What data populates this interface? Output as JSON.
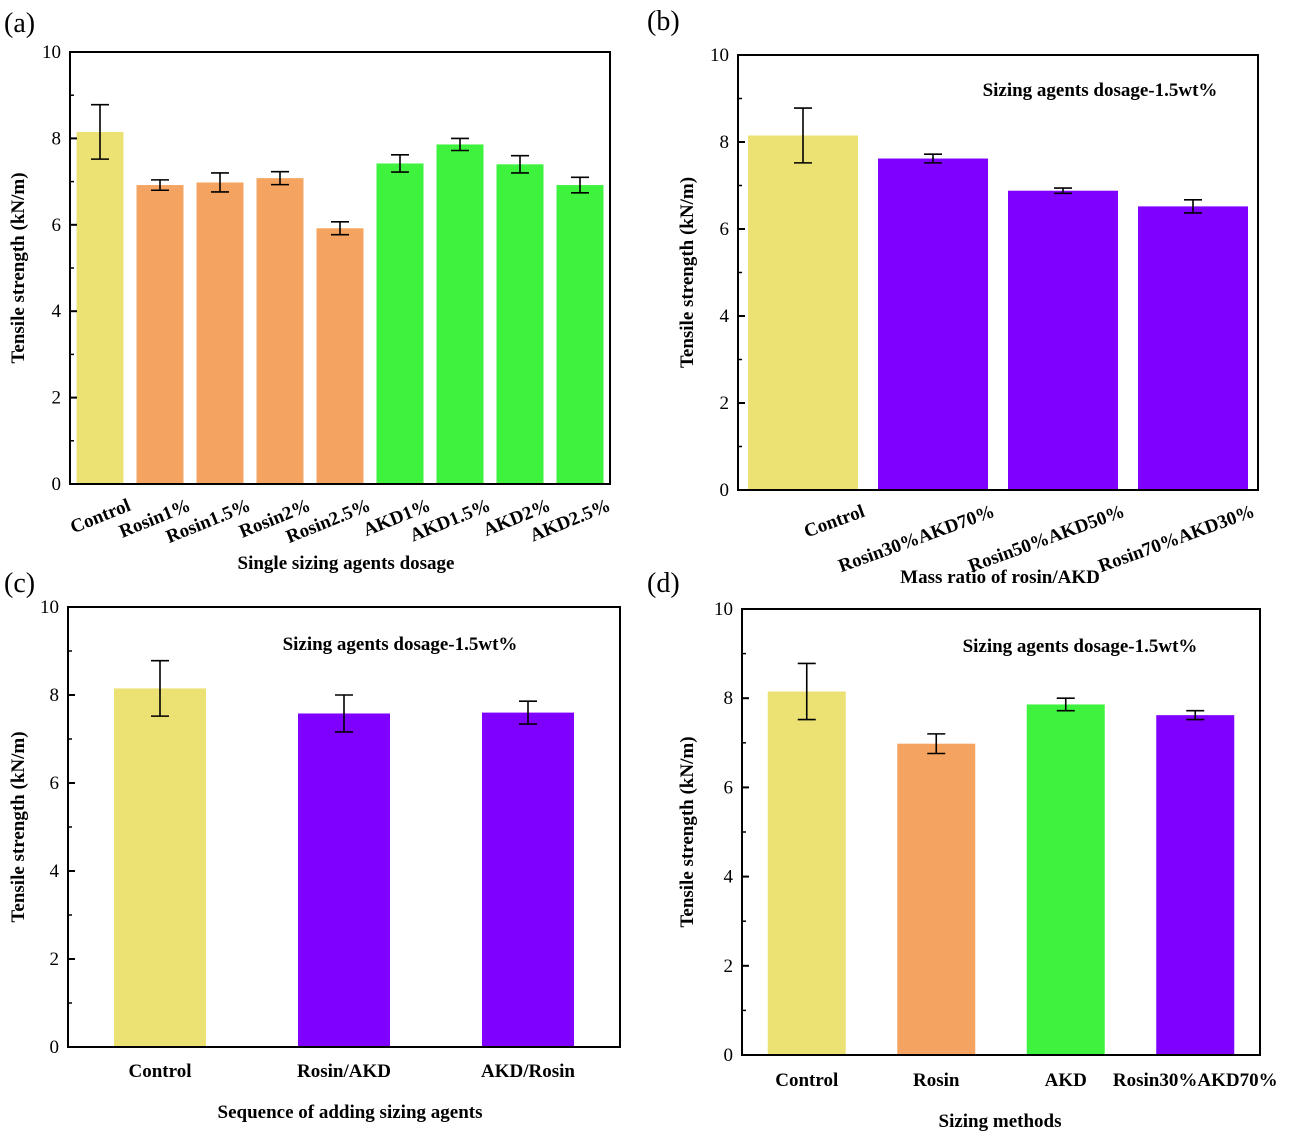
{
  "chart_data": [
    {
      "panel": "(a)",
      "type": "bar",
      "title": "",
      "annotation": "",
      "xlabel": "Single sizing agents dosage",
      "ylabel": "Tensile strength (kN/m)",
      "ylim": [
        0,
        10
      ],
      "yticks": [
        0,
        2,
        4,
        6,
        8,
        10
      ],
      "categories": [
        "Control",
        "Rosin1%",
        "Rosin1.5%",
        "Rosin2%",
        "Rosin2.5%",
        "AKD1%",
        "AKD1.5%",
        "AKD2%",
        "AKD2.5%"
      ],
      "values": [
        8.15,
        6.92,
        6.98,
        7.08,
        5.92,
        7.42,
        7.86,
        7.4,
        6.92
      ],
      "errors": [
        0.63,
        0.12,
        0.22,
        0.15,
        0.15,
        0.2,
        0.14,
        0.2,
        0.18
      ],
      "colors": [
        "#ece274",
        "#f4a460",
        "#f4a460",
        "#f4a460",
        "#f4a460",
        "#3ef23e",
        "#3ef23e",
        "#3ef23e",
        "#3ef23e"
      ],
      "rotate_labels": true
    },
    {
      "panel": "(b)",
      "type": "bar",
      "title": "",
      "annotation": "Sizing agents dosage-1.5wt%",
      "xlabel": "Mass ratio of rosin/AKD",
      "ylabel": "Tensile strength (kN/m)",
      "ylim": [
        0,
        10
      ],
      "yticks": [
        0,
        2,
        4,
        6,
        8,
        10
      ],
      "categories": [
        "Control",
        "Rosin30%AKD70%",
        "Rosin50%AKD50%",
        "Rosin70%AKD30%"
      ],
      "values": [
        8.15,
        7.62,
        6.88,
        6.52
      ],
      "errors": [
        0.63,
        0.1,
        0.06,
        0.15
      ],
      "colors": [
        "#ece274",
        "#8000ff",
        "#8000ff",
        "#8000ff"
      ],
      "rotate_labels": true
    },
    {
      "panel": "(c)",
      "type": "bar",
      "title": "",
      "annotation": "Sizing agents dosage-1.5wt%",
      "xlabel": "Sequence of adding sizing agents",
      "ylabel": "Tensile strength (kN/m)",
      "ylim": [
        0,
        10
      ],
      "yticks": [
        0,
        2,
        4,
        6,
        8,
        10
      ],
      "categories": [
        "Control",
        "Rosin/AKD",
        "AKD/Rosin"
      ],
      "values": [
        8.15,
        7.58,
        7.6
      ],
      "errors": [
        0.63,
        0.42,
        0.26
      ],
      "colors": [
        "#ece274",
        "#8000ff",
        "#8000ff"
      ],
      "rotate_labels": false
    },
    {
      "panel": "(d)",
      "type": "bar",
      "title": "",
      "annotation": "Sizing agents dosage-1.5wt%",
      "xlabel": "Sizing methods",
      "ylabel": "Tensile strength (kN/m)",
      "ylim": [
        0,
        10
      ],
      "yticks": [
        0,
        2,
        4,
        6,
        8,
        10
      ],
      "categories": [
        "Control",
        "Rosin",
        "AKD",
        "Rosin30%AKD70%"
      ],
      "values": [
        8.15,
        6.98,
        7.86,
        7.62
      ],
      "errors": [
        0.63,
        0.22,
        0.14,
        0.1
      ],
      "colors": [
        "#ece274",
        "#f4a460",
        "#3ef23e",
        "#8000ff"
      ],
      "rotate_labels": false
    }
  ]
}
